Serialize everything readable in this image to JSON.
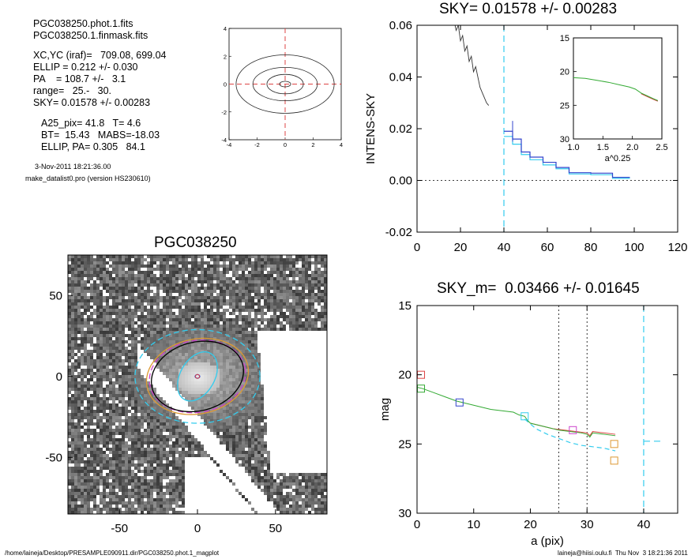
{
  "info": {
    "lines1": [
      "PGC038250.phot.1.fits",
      "PGC038250.1.finmask.fits"
    ],
    "lines2": [
      "XC,YC (iraf)=   709.08, 699.04",
      "ELLIP = 0.212 +/- 0.030",
      "PA    = 108.7 +/-   3.1",
      "range=   25.-   30.",
      "SKY= 0.01578 +/- 0.00283"
    ],
    "lines3": [
      "A25_pix= 41.8   T= 4.6",
      "BT=  15.43   MABS=-18.03",
      "ELLIP, PA= 0.305   84.1"
    ],
    "date": "3-Nov-2011 18:21:36.00",
    "program": "make_datalist0.pro (version HS230610)"
  },
  "footer": {
    "path": "/home/laineja/Desktop/PRESAMPLE090911.dir/PGC038250.phot.1_magplot",
    "user": "laineja@hiisi.oulu.fi  Thu Nov  3 18:21:36 2011"
  },
  "colors": {
    "cyan": "#33ccee",
    "red": "#dd4444",
    "green": "#33aa33",
    "blue": "#3344cc",
    "orange": "#dd9933",
    "magenta": "#cc44cc",
    "black": "#000000",
    "gray": "#999999"
  },
  "chart_data": [
    {
      "id": "contour",
      "type": "contour",
      "xlim": [
        -4,
        4
      ],
      "ylim": [
        -4,
        4
      ],
      "xticks": [
        -4,
        -2,
        0,
        2,
        4
      ],
      "yticks": [
        -4,
        -2,
        0,
        2,
        4
      ],
      "center": [
        0,
        0
      ],
      "contours": [
        {
          "rx": 3.5,
          "ry": 2.1
        },
        {
          "rx": 2.3,
          "ry": 1.2
        },
        {
          "rx": 1.3,
          "ry": 0.7
        },
        {
          "rx": 0.4,
          "ry": 0.2
        }
      ]
    },
    {
      "id": "image",
      "type": "image",
      "title": "PGC038250",
      "xlim": [
        -83,
        83
      ],
      "ylim": [
        -85,
        75
      ],
      "xticks": [
        -50,
        0,
        50
      ],
      "yticks": [
        -50,
        0,
        50
      ],
      "ellipses": [
        {
          "name": "cyan-dashed",
          "a": 40,
          "b": 30,
          "pa": 0,
          "color": "cyan",
          "dash": true
        },
        {
          "name": "orange",
          "a": 33,
          "b": 24,
          "pa": 12,
          "color": "orange",
          "dash": false
        },
        {
          "name": "magenta",
          "a": 31,
          "b": 23,
          "pa": 10,
          "color": "magenta",
          "dash": true
        },
        {
          "name": "black",
          "a": 30,
          "b": 22,
          "pa": 15,
          "color": "black",
          "dash": false
        },
        {
          "name": "cyan-inner",
          "a": 17,
          "b": 11,
          "pa": 60,
          "color": "cyan",
          "dash": false
        },
        {
          "name": "blue-core",
          "a": 1.5,
          "b": 1.2,
          "pa": 0,
          "color": "blue",
          "dash": false
        }
      ]
    },
    {
      "id": "sky",
      "type": "line",
      "title": "SKY= 0.01578 +/- 0.00283",
      "ylabel": "INTENS-SKY",
      "xlim": [
        0,
        120
      ],
      "ylim": [
        -0.02,
        0.06
      ],
      "xticks": [
        0,
        20,
        40,
        60,
        80,
        100,
        120
      ],
      "yticks": [
        -0.02,
        0.0,
        0.02,
        0.04,
        0.06
      ],
      "ytick_labels": [
        "-0.02",
        "0.00",
        "0.02",
        "0.04",
        "0.06"
      ],
      "vline": 40,
      "profile_black": [
        [
          17,
          0.062
        ],
        [
          18,
          0.058
        ],
        [
          19,
          0.06
        ],
        [
          20,
          0.054
        ],
        [
          21,
          0.056
        ],
        [
          22,
          0.05
        ],
        [
          23,
          0.052
        ],
        [
          24,
          0.046
        ],
        [
          25,
          0.048
        ],
        [
          26,
          0.042
        ],
        [
          27,
          0.044
        ],
        [
          28,
          0.04
        ],
        [
          29,
          0.036
        ],
        [
          30,
          0.034
        ],
        [
          31,
          0.032
        ],
        [
          32,
          0.03
        ],
        [
          33,
          0.029
        ]
      ],
      "steps_blue": [
        [
          40,
          0.019
        ],
        [
          44,
          0.019
        ],
        [
          44,
          0.016
        ],
        [
          48,
          0.016
        ],
        [
          48,
          0.011
        ],
        [
          52,
          0.011
        ],
        [
          52,
          0.009
        ],
        [
          58,
          0.009
        ],
        [
          58,
          0.007
        ],
        [
          64,
          0.007
        ],
        [
          64,
          0.005
        ],
        [
          70,
          0.005
        ],
        [
          70,
          0.003
        ],
        [
          80,
          0.003
        ],
        [
          80,
          0.0028
        ],
        [
          90,
          0.0028
        ],
        [
          90,
          0.0012
        ],
        [
          98,
          0.0012
        ]
      ],
      "steps_cyan": [
        [
          40,
          0.017
        ],
        [
          44,
          0.017
        ],
        [
          44,
          0.014
        ],
        [
          48,
          0.014
        ],
        [
          48,
          0.01
        ],
        [
          52,
          0.01
        ],
        [
          52,
          0.008
        ],
        [
          58,
          0.008
        ],
        [
          58,
          0.006
        ],
        [
          64,
          0.006
        ],
        [
          64,
          0.0045
        ],
        [
          70,
          0.0045
        ],
        [
          70,
          0.0025
        ],
        [
          80,
          0.0025
        ],
        [
          80,
          0.0022
        ],
        [
          90,
          0.0022
        ],
        [
          90,
          0.0008
        ],
        [
          98,
          0.0008
        ]
      ],
      "errbar_blue": [
        [
          44,
          0.023
        ],
        [
          44,
          0.015
        ]
      ],
      "inset": {
        "xlabel": "a^0.25",
        "xlim": [
          1.0,
          2.5
        ],
        "ylim": [
          30,
          15
        ],
        "xticks": [
          1.0,
          1.5,
          2.0,
          2.5
        ],
        "xtick_labels": [
          "1.0",
          "1.5",
          "2.0",
          "2.5"
        ],
        "yticks": [
          15,
          20,
          25,
          30
        ],
        "green": [
          [
            1.0,
            20.9
          ],
          [
            1.2,
            21.0
          ],
          [
            1.4,
            21.3
          ],
          [
            1.6,
            21.6
          ],
          [
            1.8,
            22.0
          ],
          [
            1.95,
            22.3
          ],
          [
            2.05,
            22.6
          ],
          [
            2.15,
            23.2
          ],
          [
            2.25,
            23.6
          ],
          [
            2.35,
            24.0
          ],
          [
            2.43,
            24.3
          ]
        ],
        "red": [
          [
            2.15,
            23.3
          ],
          [
            2.25,
            23.7
          ],
          [
            2.35,
            24.1
          ],
          [
            2.43,
            24.4
          ]
        ],
        "black": [
          [
            2.15,
            23.25
          ],
          [
            2.25,
            23.65
          ],
          [
            2.35,
            24.05
          ],
          [
            2.43,
            24.35
          ]
        ]
      }
    },
    {
      "id": "mag",
      "type": "line",
      "title": "SKY_m=  0.03466 +/- 0.01645",
      "xlabel": "a (pix)",
      "ylabel": "mag",
      "xlim": [
        0,
        46
      ],
      "ylim": [
        30,
        15
      ],
      "xticks": [
        0,
        10,
        20,
        30,
        40
      ],
      "yticks": [
        15,
        20,
        25,
        30
      ],
      "vlines_dotted": [
        25,
        30
      ],
      "vline_cyan": 40,
      "hline_cyan": {
        "x": [
          40,
          43
        ],
        "y": 24.8
      },
      "green": [
        [
          0,
          20.9
        ],
        [
          1,
          21.0
        ],
        [
          3,
          21.3
        ],
        [
          5,
          21.6
        ],
        [
          7,
          21.9
        ],
        [
          9,
          22.1
        ],
        [
          11,
          22.3
        ],
        [
          13,
          22.5
        ],
        [
          15,
          22.6
        ],
        [
          17,
          22.7
        ],
        [
          18,
          22.9
        ],
        [
          19,
          23.0
        ],
        [
          19.5,
          23.3
        ],
        [
          20,
          23.5
        ],
        [
          21,
          23.6
        ],
        [
          23,
          23.8
        ],
        [
          25,
          24.0
        ],
        [
          27,
          24.1
        ],
        [
          29,
          24.2
        ],
        [
          30,
          24.3
        ],
        [
          30.5,
          24.5
        ],
        [
          31,
          24.2
        ],
        [
          33,
          24.3
        ],
        [
          35,
          24.4
        ]
      ],
      "red": [
        [
          20,
          23.5
        ],
        [
          22,
          23.7
        ],
        [
          24,
          23.9
        ],
        [
          26,
          24.0
        ],
        [
          28,
          24.1
        ],
        [
          30,
          24.2
        ],
        [
          30.5,
          24.4
        ],
        [
          31,
          24.1
        ],
        [
          33,
          24.2
        ],
        [
          35,
          24.3
        ]
      ],
      "cyan_dashed": [
        [
          19,
          23.2
        ],
        [
          21,
          23.9
        ],
        [
          23,
          24.3
        ],
        [
          25,
          24.6
        ],
        [
          27,
          24.9
        ],
        [
          29,
          25.1
        ],
        [
          31,
          25.2
        ],
        [
          33,
          25.3
        ],
        [
          35,
          25.5
        ]
      ],
      "squares": [
        {
          "x": 0.7,
          "y": 20.0,
          "color": "red"
        },
        {
          "x": 0.7,
          "y": 21.0,
          "color": "green"
        },
        {
          "x": 7.5,
          "y": 22.0,
          "color": "blue"
        },
        {
          "x": 19.0,
          "y": 23.0,
          "color": "cyan"
        },
        {
          "x": 27.5,
          "y": 24.0,
          "color": "magenta"
        },
        {
          "x": 34.8,
          "y": 25.0,
          "color": "orange"
        },
        {
          "x": 34.8,
          "y": 26.2,
          "color": "orange"
        }
      ]
    }
  ]
}
